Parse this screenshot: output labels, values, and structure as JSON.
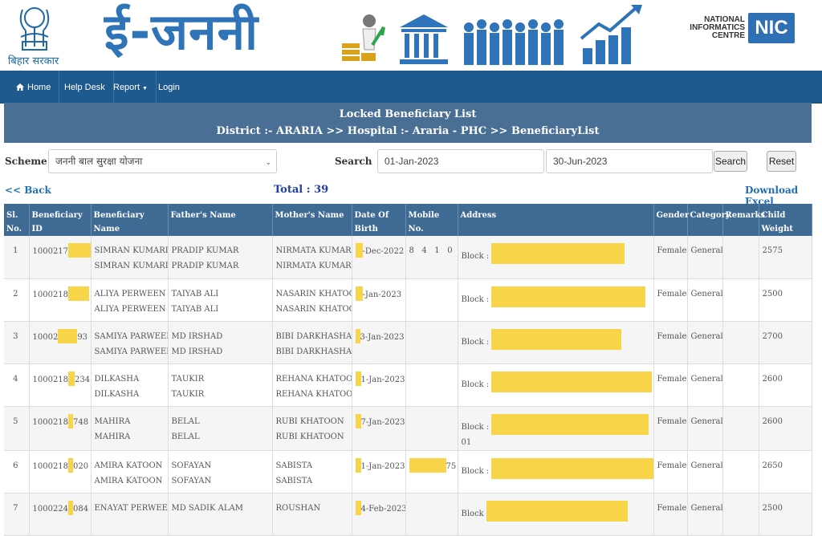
{
  "banner": {
    "emblem_caption": "बिहार सरकार",
    "app_title": "ई-जननी",
    "nic_line1": "NATIONAL",
    "nic_line2": "INFORMATICS",
    "nic_line3": "CENTRE",
    "nic_logo_text": "NIC"
  },
  "nav": {
    "home": "Home",
    "helpdesk": "Help Desk",
    "report": "Report",
    "login": "Login"
  },
  "panel": {
    "title": "Locked Beneficiary List",
    "breadcrumb": "District :- ARARIA >> Hospital :- Araria - PHC >> BeneficiaryList"
  },
  "filters": {
    "scheme_label": "Scheme",
    "scheme_value": "जननी बाल सुरक्षा योजना",
    "search_label": "Search",
    "from_date": "01-Jan-2023",
    "to_date": "30-Jun-2023",
    "search_button": "Search",
    "reset_button": "Reset"
  },
  "links": {
    "back": "<< Back",
    "total": "Total : 39",
    "download": "Download Excel"
  },
  "table": {
    "headers": {
      "sl": "Sl. No.",
      "id": "Beneficiary ID",
      "name": "Beneficiary Name",
      "father": "Father's Name",
      "mother": "Mother's Name",
      "dob": "Date Of Birth",
      "mobile": "Mobile No.",
      "address": "Address",
      "gender": "Gender",
      "category": "Category",
      "remarks": "Remarks",
      "weight": "Child Weight"
    },
    "rows": [
      {
        "sl": "1",
        "id_a": "1000217",
        "id_b": "",
        "name": "SIMRAN KUMARI",
        "name2": "SIMRAN KUMARI",
        "father": "PRADIP KUMAR",
        "father2": "PRADIP KUMAR",
        "mother": "NIRMATA KUMARI",
        "mother2": "NIRMATA KUMARI",
        "dob": "-Dec-2022",
        "mobile": "8   4   1   0",
        "addr": "Block :",
        "addr2": "",
        "gender": "Female",
        "category": "General",
        "remarks": "",
        "weight": "2575"
      },
      {
        "sl": "2",
        "id_a": "1000218",
        "id_b": "",
        "name": "ALIYA PERWEEN",
        "name2": "ALIYA PERWEEN",
        "father": "TAIYAB ALI",
        "father2": "TAIYAB ALI",
        "mother": "NASARIN KHATOON",
        "mother2": "NASARIN KHATOON",
        "dob": "-Jan-2023",
        "mobile": "",
        "addr": "Block :",
        "addr2": "",
        "gender": "Female",
        "category": "General",
        "remarks": "",
        "weight": "2500"
      },
      {
        "sl": "3",
        "id_a": "10002",
        "id_b": "93",
        "name": "SAMIYA PARWEEN",
        "name2": "SAMIYA PARWEEN",
        "father": "MD IRSHAD",
        "father2": "MD IRSHAD",
        "mother": "BIBI DARKHASHAN",
        "mother2": "BIBI DARKHASHAN",
        "dob": "3-Jan-2023",
        "mobile": "",
        "addr": "Block :",
        "addr2": "",
        "gender": "Female",
        "category": "General",
        "remarks": "",
        "weight": "2700"
      },
      {
        "sl": "4",
        "id_a": "1000218",
        "id_b": "234",
        "name": "DILKASHA",
        "name2": "DILKASHA",
        "father": "TAUKIR",
        "father2": "TAUKIR",
        "mother": "REHANA KHATOON",
        "mother2": "REHANA KHATOON",
        "dob": "1-Jan-2023",
        "mobile": "",
        "addr": "Block :",
        "addr2": "",
        "gender": "Female",
        "category": "General",
        "remarks": "",
        "weight": "2600"
      },
      {
        "sl": "5",
        "id_a": "1000218",
        "id_b": "748",
        "name": "MAHIRA",
        "name2": "MAHIRA",
        "father": "BELAL",
        "father2": "BELAL",
        "mother": "RUBI KHATOON",
        "mother2": "RUBI KHATOON",
        "dob": "7-Jan-2023",
        "mobile": "",
        "addr": "Block :",
        "addr2": "01",
        "gender": "Female",
        "category": "General",
        "remarks": "",
        "weight": "2600"
      },
      {
        "sl": "6",
        "id_a": "1000218",
        "id_b": "020",
        "name": "AMIRA KATOON",
        "name2": "AMIRA KATOON",
        "father": "SOFAYAN",
        "father2": "SOFAYAN",
        "mother": "SABISTA",
        "mother2": "SABISTA",
        "dob": "1-Jan-2023",
        "mobile": "75",
        "addr": "Block :",
        "addr2": "",
        "gender": "Female",
        "category": "General",
        "remarks": "",
        "weight": "2650"
      },
      {
        "sl": "7",
        "id_a": "1000224",
        "id_b": "084",
        "name": "ENAYAT PERWEEN",
        "name2": "",
        "father": "MD SADIK ALAM",
        "father2": "",
        "mother": "ROUSHAN",
        "mother2": "",
        "dob": "4-Feb-2023",
        "mobile": "",
        "addr": "Block",
        "addr2": "",
        "gender": "Female",
        "category": "General",
        "remarks": "",
        "weight": "2500"
      }
    ]
  },
  "colors": {
    "navbar": "#1f5a8f",
    "panel_header": "#4a6f95",
    "table_header": "#3f6a94",
    "redaction": "#f8d548",
    "link": "#1f6fb6"
  }
}
